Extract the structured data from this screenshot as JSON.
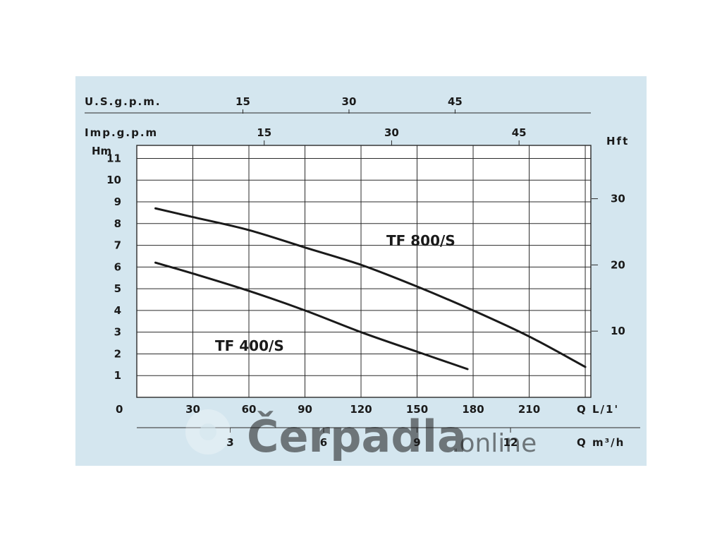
{
  "chart_data": {
    "type": "line",
    "series": [
      {
        "name": "TF 800/S",
        "x": [
          10,
          30,
          60,
          90,
          120,
          150,
          180,
          210,
          240
        ],
        "y": [
          8.7,
          8.3,
          7.7,
          6.9,
          6.1,
          5.1,
          4.0,
          2.8,
          1.4
        ]
      },
      {
        "name": "TF 400/S",
        "x": [
          10,
          30,
          60,
          90,
          120,
          150,
          177
        ],
        "y": [
          6.2,
          5.7,
          4.9,
          4.0,
          3.0,
          2.1,
          1.3
        ]
      }
    ],
    "xlim": [
      0,
      243
    ],
    "ylim": [
      0,
      11.6
    ],
    "x_gridlines": [
      30,
      60,
      90,
      120,
      150,
      180,
      210,
      240
    ],
    "y_gridlines": [
      1,
      2,
      3,
      4,
      5,
      6,
      7,
      8,
      9,
      10,
      11
    ],
    "grid": true,
    "axes": {
      "bottom_primary": {
        "unit_label": "Q L/1'",
        "origin_label": "0",
        "ticks": [
          {
            "value": 30,
            "label": "30"
          },
          {
            "value": 60,
            "label": "60"
          },
          {
            "value": 90,
            "label": "90"
          },
          {
            "value": 120,
            "label": "120"
          },
          {
            "value": 150,
            "label": "150"
          },
          {
            "value": 180,
            "label": "180"
          },
          {
            "value": 210,
            "label": "210"
          }
        ]
      },
      "bottom_secondary": {
        "unit_label": "Q m³/h",
        "ticks": [
          {
            "value": 3,
            "label": "3"
          },
          {
            "value": 6,
            "label": "6"
          },
          {
            "value": 9,
            "label": "9"
          },
          {
            "value": 12,
            "label": "12"
          }
        ]
      },
      "top_us": {
        "unit_label": "U.S.g.p.m.",
        "ticks": [
          {
            "value": 15,
            "label": "15"
          },
          {
            "value": 30,
            "label": "30"
          },
          {
            "value": 45,
            "label": "45"
          }
        ]
      },
      "top_imp": {
        "unit_label": "Imp.g.p.m",
        "ticks": [
          {
            "value": 15,
            "label": "15"
          },
          {
            "value": 30,
            "label": "30"
          },
          {
            "value": 45,
            "label": "45"
          }
        ]
      },
      "left": {
        "unit_label": "Hm",
        "ticks": [
          {
            "value": 1,
            "label": "1"
          },
          {
            "value": 2,
            "label": "2"
          },
          {
            "value": 3,
            "label": "3"
          },
          {
            "value": 4,
            "label": "4"
          },
          {
            "value": 5,
            "label": "5"
          },
          {
            "value": 6,
            "label": "6"
          },
          {
            "value": 7,
            "label": "7"
          },
          {
            "value": 8,
            "label": "8"
          },
          {
            "value": 9,
            "label": "9"
          },
          {
            "value": 10,
            "label": "10"
          },
          {
            "value": 11,
            "label": "11"
          }
        ]
      },
      "right": {
        "unit_label": "Hft",
        "ticks": [
          {
            "value": 10,
            "label": "10"
          },
          {
            "value": 20,
            "label": "20"
          },
          {
            "value": 30,
            "label": "30"
          }
        ]
      }
    }
  },
  "watermark": {
    "brand": "Čerpadla",
    "suffix": ".online"
  },
  "colors": {
    "panel": "#d4e6ef",
    "plot": "#ffffff",
    "ink": "#1a1a1a"
  }
}
